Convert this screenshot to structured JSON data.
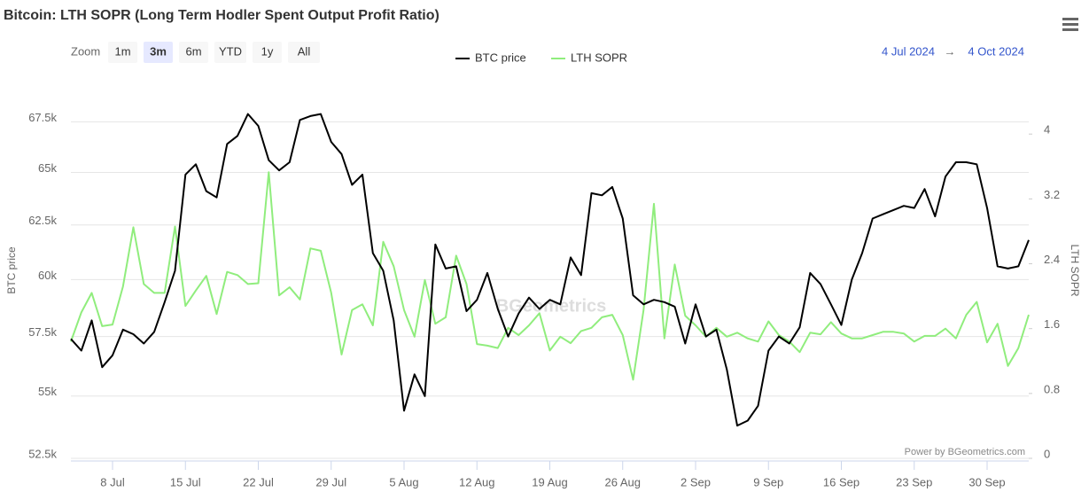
{
  "chart_data": {
    "type": "line",
    "title": "Bitcoin: LTH SOPR (Long Term Hodler Spent Output Profit Ratio)",
    "zoom_label": "Zoom",
    "zoom_buttons": [
      "1m",
      "3m",
      "6m",
      "YTD",
      "1y",
      "All"
    ],
    "zoom_selected": "3m",
    "range_from": "4 Jul 2024",
    "range_separator": "→",
    "range_to": "4 Oct 2024",
    "credit": "Power by BGeometrics.com",
    "watermark": "BGeometrics",
    "y_label": "BTC price",
    "y2_label": "LTH SOPR",
    "ylog": true,
    "grid": true,
    "legend": "top",
    "xlim": [
      "2024-07-04",
      "2024-10-04"
    ],
    "xticks": [
      {
        "value": "2024-07-08",
        "label": "8 Jul"
      },
      {
        "value": "2024-07-15",
        "label": "15 Jul"
      },
      {
        "value": "2024-07-22",
        "label": "22 Jul"
      },
      {
        "value": "2024-07-29",
        "label": "29 Jul"
      },
      {
        "value": "2024-08-05",
        "label": "5 Aug"
      },
      {
        "value": "2024-08-12",
        "label": "12 Aug"
      },
      {
        "value": "2024-08-19",
        "label": "19 Aug"
      },
      {
        "value": "2024-08-26",
        "label": "26 Aug"
      },
      {
        "value": "2024-09-02",
        "label": "2 Sep"
      },
      {
        "value": "2024-09-09",
        "label": "9 Sep"
      },
      {
        "value": "2024-09-16",
        "label": "16 Sep"
      },
      {
        "value": "2024-09-23",
        "label": "23 Sep"
      },
      {
        "value": "2024-09-30",
        "label": "30 Sep"
      }
    ],
    "ylim": [
      52500,
      69200
    ],
    "yticks": [
      {
        "value": 52500,
        "label": "52.5k"
      },
      {
        "value": 55000,
        "label": "55k"
      },
      {
        "value": 57500,
        "label": "57.5k"
      },
      {
        "value": 60000,
        "label": "60k"
      },
      {
        "value": 62500,
        "label": "62.5k"
      },
      {
        "value": 65000,
        "label": "65k"
      },
      {
        "value": 67500,
        "label": "67.5k"
      }
    ],
    "y2lim": [
      0,
      4.56
    ],
    "y2ticks": [
      0,
      0.8,
      1.6,
      2.4,
      3.2,
      4
    ],
    "x": [
      "2024-07-04",
      "2024-07-05",
      "2024-07-06",
      "2024-07-07",
      "2024-07-08",
      "2024-07-09",
      "2024-07-10",
      "2024-07-11",
      "2024-07-12",
      "2024-07-13",
      "2024-07-14",
      "2024-07-15",
      "2024-07-16",
      "2024-07-17",
      "2024-07-18",
      "2024-07-19",
      "2024-07-20",
      "2024-07-21",
      "2024-07-22",
      "2024-07-23",
      "2024-07-24",
      "2024-07-25",
      "2024-07-26",
      "2024-07-27",
      "2024-07-28",
      "2024-07-29",
      "2024-07-30",
      "2024-07-31",
      "2024-08-01",
      "2024-08-02",
      "2024-08-03",
      "2024-08-04",
      "2024-08-05",
      "2024-08-06",
      "2024-08-07",
      "2024-08-08",
      "2024-08-09",
      "2024-08-10",
      "2024-08-11",
      "2024-08-12",
      "2024-08-13",
      "2024-08-14",
      "2024-08-15",
      "2024-08-16",
      "2024-08-17",
      "2024-08-18",
      "2024-08-19",
      "2024-08-20",
      "2024-08-21",
      "2024-08-22",
      "2024-08-23",
      "2024-08-24",
      "2024-08-25",
      "2024-08-26",
      "2024-08-27",
      "2024-08-28",
      "2024-08-29",
      "2024-08-30",
      "2024-08-31",
      "2024-09-01",
      "2024-09-02",
      "2024-09-03",
      "2024-09-04",
      "2024-09-05",
      "2024-09-06",
      "2024-09-07",
      "2024-09-08",
      "2024-09-09",
      "2024-09-10",
      "2024-09-11",
      "2024-09-12",
      "2024-09-13",
      "2024-09-14",
      "2024-09-15",
      "2024-09-16",
      "2024-09-17",
      "2024-09-18",
      "2024-09-19",
      "2024-09-20",
      "2024-09-21",
      "2024-09-22",
      "2024-09-23",
      "2024-09-24",
      "2024-09-25",
      "2024-09-26",
      "2024-09-27",
      "2024-09-28",
      "2024-09-29",
      "2024-09-30",
      "2024-10-01",
      "2024-10-02",
      "2024-10-03",
      "2024-10-04"
    ],
    "series": [
      {
        "name": "BTC price",
        "color": "#000000",
        "axis": "y",
        "values": [
          57400,
          56900,
          58200,
          56200,
          56700,
          57800,
          57600,
          57200,
          57700,
          59000,
          60400,
          64900,
          65400,
          64100,
          63800,
          66400,
          66800,
          67900,
          67300,
          65600,
          65100,
          65500,
          67600,
          67800,
          67900,
          66500,
          65900,
          64400,
          64900,
          61200,
          60400,
          58200,
          54400,
          55900,
          55000,
          61600,
          60500,
          60600,
          58600,
          59100,
          60300,
          58700,
          57500,
          58500,
          59200,
          58700,
          59100,
          58900,
          61000,
          60200,
          64000,
          63900,
          64300,
          62800,
          59300,
          58900,
          59100,
          59000,
          58800,
          57200,
          58900,
          57500,
          57800,
          56100,
          53800,
          54000,
          54600,
          56900,
          57500,
          57200,
          57900,
          60300,
          59800,
          58900,
          58000,
          60000,
          61200,
          62800,
          63000,
          63200,
          63400,
          63300,
          64200,
          62900,
          64800,
          65500,
          65500,
          65400,
          63300,
          60600,
          60500,
          60600,
          61800
        ]
      },
      {
        "name": "LTH SOPR",
        "color": "#90ed7d",
        "axis": "y2",
        "values": [
          1.44,
          1.8,
          2.04,
          1.63,
          1.65,
          2.12,
          2.85,
          2.15,
          2.04,
          2.04,
          2.86,
          1.88,
          2.07,
          2.25,
          1.78,
          2.3,
          2.26,
          2.15,
          2.16,
          3.53,
          2.01,
          2.11,
          1.96,
          2.59,
          2.56,
          2.04,
          1.28,
          1.83,
          1.9,
          1.64,
          2.67,
          2.37,
          1.83,
          1.5,
          2.2,
          1.66,
          1.74,
          2.5,
          2.15,
          1.41,
          1.39,
          1.36,
          1.61,
          1.52,
          1.64,
          1.79,
          1.33,
          1.5,
          1.42,
          1.57,
          1.61,
          1.74,
          1.77,
          1.52,
          0.97,
          1.83,
          3.14,
          1.48,
          2.39,
          1.76,
          1.64,
          1.5,
          1.61,
          1.5,
          1.55,
          1.48,
          1.44,
          1.69,
          1.52,
          1.44,
          1.31,
          1.55,
          1.53,
          1.68,
          1.54,
          1.48,
          1.48,
          1.52,
          1.56,
          1.56,
          1.54,
          1.44,
          1.51,
          1.51,
          1.6,
          1.48,
          1.77,
          1.93,
          1.43,
          1.66,
          1.14,
          1.36,
          1.77
        ]
      }
    ]
  }
}
